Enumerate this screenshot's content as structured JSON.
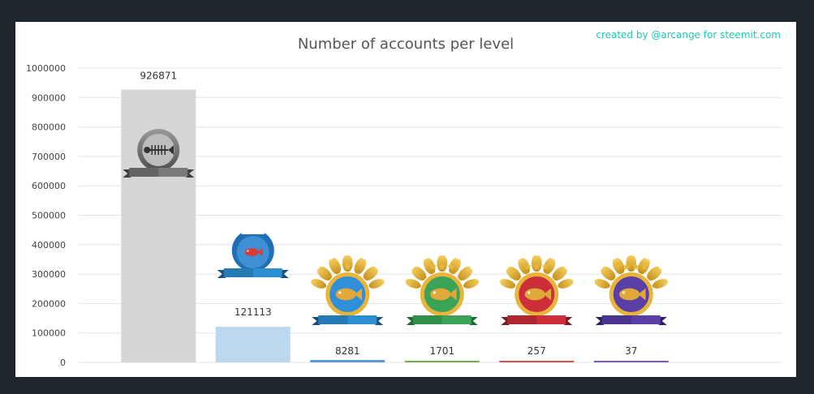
{
  "chart_data": {
    "type": "bar",
    "title": "Number of accounts per level",
    "credit": "created by @arcange for steemit.com",
    "categories": [
      "",
      "",
      "",
      "",
      "",
      ""
    ],
    "badges": [
      "plankton-badge-icon",
      "minnow-badge-icon",
      "dolphin-badge-icon",
      "orca-badge-icon",
      "whale-badge-icon",
      "top-whale-badge-icon"
    ],
    "values": [
      926871,
      121113,
      8281,
      1701,
      257,
      37
    ],
    "labels": [
      "926871",
      "121113",
      "8281",
      "1701",
      "257",
      "37"
    ],
    "colors": [
      "#d6d6d6",
      "#bdd7ee",
      "#5b9bd5",
      "#70ad47",
      "#e04f4f",
      "#7e57c2"
    ],
    "ylim": [
      0,
      1000000
    ],
    "yticks": [
      "0",
      "100000",
      "200000",
      "300000",
      "400000",
      "500000",
      "600000",
      "700000",
      "800000",
      "900000",
      "1000000"
    ],
    "grid": true,
    "legend": "none",
    "xlabel": "",
    "ylabel": ""
  }
}
